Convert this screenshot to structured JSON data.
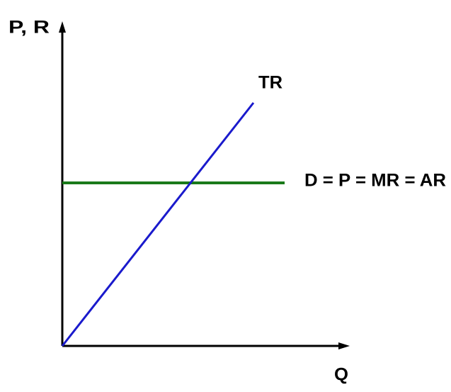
{
  "axes": {
    "y_label": "P, R",
    "x_label": "Q"
  },
  "lines": [
    {
      "label": "TR"
    },
    {
      "label": "D = P = MR = AR"
    }
  ]
}
